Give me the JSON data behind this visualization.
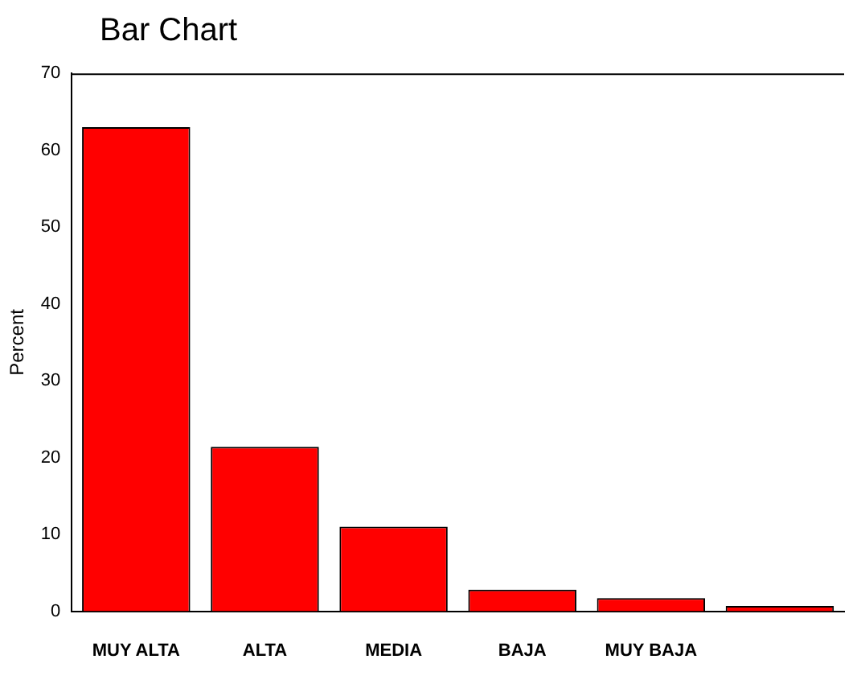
{
  "chart_data": {
    "type": "bar",
    "title": "Bar Chart",
    "ylabel": "Percent",
    "categories": [
      "MUY ALTA",
      "ALTA",
      "MEDIA",
      "BAJA",
      "MUY BAJA",
      null
    ],
    "values": [
      63.0,
      21.4,
      11.0,
      2.8,
      1.7,
      0.7
    ],
    "color": "#ff0000",
    "ylim": [
      0,
      70
    ],
    "yticks": [
      0,
      10,
      20,
      30,
      40,
      50,
      60,
      70
    ],
    "grid": false,
    "legend": false
  }
}
